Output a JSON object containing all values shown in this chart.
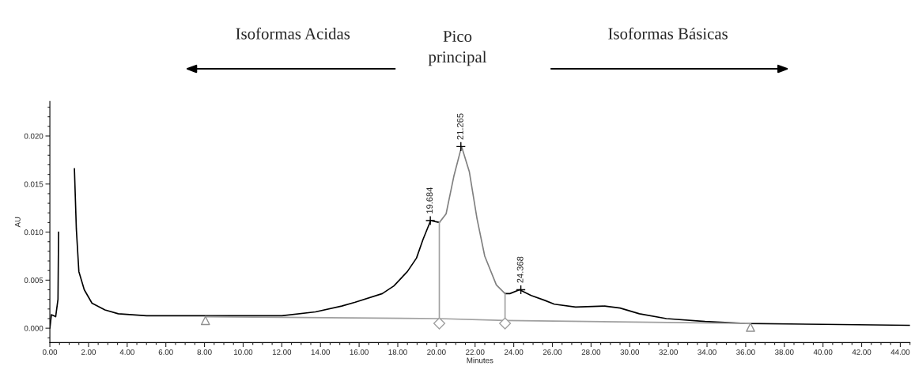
{
  "chart_data": {
    "type": "line",
    "xlabel": "Minutes",
    "ylabel": "AU",
    "xlim": [
      0,
      44.5
    ],
    "ylim": [
      -0.0015,
      0.0236
    ],
    "xticks": [
      {
        "value": 0,
        "label": "0.00"
      },
      {
        "value": 2,
        "label": "2.00"
      },
      {
        "value": 4,
        "label": "4.00"
      },
      {
        "value": 6,
        "label": "6.00"
      },
      {
        "value": 8,
        "label": "8.00"
      },
      {
        "value": 10,
        "label": "10.00"
      },
      {
        "value": 12,
        "label": "12.00"
      },
      {
        "value": 14,
        "label": "14.00"
      },
      {
        "value": 16,
        "label": "16.00"
      },
      {
        "value": 18,
        "label": "18.00"
      },
      {
        "value": 20,
        "label": "20.00"
      },
      {
        "value": 22,
        "label": "22.00"
      },
      {
        "value": 24,
        "label": "24.00"
      },
      {
        "value": 26,
        "label": "26.00"
      },
      {
        "value": 28,
        "label": "28.00"
      },
      {
        "value": 30,
        "label": "30.00"
      },
      {
        "value": 32,
        "label": "32.00"
      },
      {
        "value": 34,
        "label": "34.00"
      },
      {
        "value": 36,
        "label": "36.00"
      },
      {
        "value": 38,
        "label": "38.00"
      },
      {
        "value": 40,
        "label": "40.00"
      },
      {
        "value": 42,
        "label": "42.00"
      },
      {
        "value": 44,
        "label": "44.00"
      }
    ],
    "yticks": [
      {
        "value": 0,
        "label": "0.000"
      },
      {
        "value": 0.005,
        "label": "0.005"
      },
      {
        "value": 0.01,
        "label": "0.010"
      },
      {
        "value": 0.015,
        "label": "0.015"
      },
      {
        "value": 0.02,
        "label": "0.020"
      }
    ],
    "grid": false,
    "legend": false,
    "series": [
      {
        "color": "#000000",
        "x": [
          0,
          0.08,
          0.3,
          0.42,
          0.45,
          0.47,
          0.8,
          1.22,
          1.27,
          1.37,
          1.5,
          1.78,
          2.18,
          2.85,
          3.54,
          5,
          8,
          10,
          12,
          13.74,
          15.1,
          15.8,
          17.2,
          17.8,
          18.5,
          18.97,
          19.3,
          19.7,
          20.15
        ],
        "values": [
          0,
          0.0014,
          0.0012,
          0.003,
          0.01,
          null,
          null,
          null,
          0.0166,
          0.0103,
          0.0059,
          0.004,
          0.0026,
          0.0019,
          0.0015,
          0.0013,
          0.0013,
          0.0013,
          0.0013,
          0.0017,
          0.0023,
          0.0027,
          0.0036,
          0.0044,
          0.0059,
          0.0073,
          0.0092,
          0.0112,
          0.011
        ]
      },
      {
        "color": "#808080",
        "x": [
          20.15,
          20.5,
          20.9,
          21.3,
          21.7,
          22.1,
          22.5,
          23.1,
          23.55
        ],
        "values": [
          0.011,
          0.0119,
          0.0158,
          0.0189,
          0.0163,
          0.0114,
          0.0075,
          0.0045,
          0.0036
        ]
      },
      {
        "color": "#000000",
        "x": [
          23.55,
          23.8,
          24.3,
          24.9,
          25.6,
          26.1,
          27.2,
          28.7,
          29.5,
          30.5,
          31.9,
          33.9,
          35.96,
          40,
          44.5
        ],
        "values": [
          0.0036,
          0.0036,
          0.004,
          0.0034,
          0.0029,
          0.0025,
          0.0022,
          0.0023,
          0.0021,
          0.0015,
          0.001,
          0.0007,
          0.0005,
          0.0004,
          0.0003
        ]
      },
      {
        "color": "#a0a0a0",
        "x": [
          8.05,
          20.15,
          23.55,
          36.25
        ],
        "values": [
          0.0012,
          0.001,
          0.0008,
          0.0005
        ]
      },
      {
        "marker": "diamond",
        "color": "#a0a0a0",
        "x": [
          20.15,
          20.15
        ],
        "values": [
          0.0005,
          0.011
        ]
      },
      {
        "marker": "diamond",
        "color": "#a0a0a0",
        "x": [
          23.55,
          23.55
        ],
        "values": [
          0.0005,
          0.0036
        ]
      },
      {
        "type": "scatter",
        "marker": "triangle",
        "color": "#909090",
        "x": [
          8.05,
          36.25
        ],
        "values": [
          0.0008,
          0.0001
        ]
      }
    ],
    "annotations": [
      "Isoformas Acidas",
      "Pico\nprincipal",
      "Isoformas Básicas",
      {
        "text": "19.684",
        "x": 19.684,
        "y": 0.0112
      },
      {
        "text": "21.265",
        "x": 21.265,
        "y": 0.0189
      },
      {
        "text": "24.368",
        "x": 24.368,
        "y": 0.004
      }
    ]
  }
}
